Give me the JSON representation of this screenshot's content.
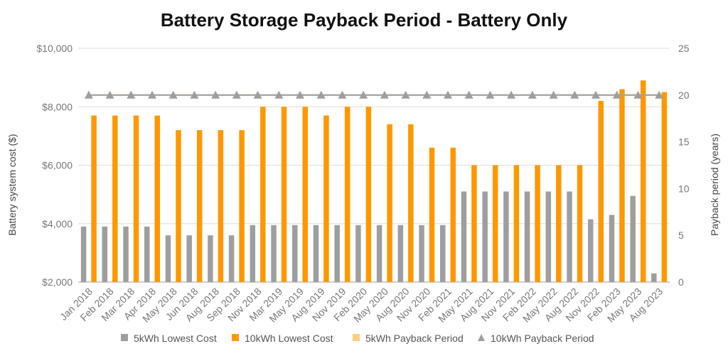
{
  "chart_data": {
    "type": "bar",
    "title": "Battery Storage Payback Period - Battery Only",
    "ylabel": "Battery system cost ($)",
    "y2label": "Payback period (years)",
    "ylim": [
      2000,
      10000
    ],
    "yticks": [
      "$2,000",
      "$4,000",
      "$6,000",
      "$8,000",
      "$10,000"
    ],
    "y2lim": [
      0,
      25
    ],
    "y2ticks": [
      "0",
      "5",
      "10",
      "15",
      "20",
      "25"
    ],
    "grid": true,
    "legend_position": "bottom",
    "categories": [
      "Jan 2018",
      "Feb 2018",
      "Mar 2018",
      "Apr 2018",
      "May 2018",
      "Jun 2018",
      "Aug 2018",
      "Sep 2018",
      "Nov 2018",
      "Mar 2019",
      "May 2019",
      "Aug 2019",
      "Nov 2019",
      "Feb 2020",
      "May 2020",
      "Aug 2020",
      "Nov 2020",
      "Feb 2021",
      "May 2021",
      "Aug 2021",
      "Nov 2021",
      "Feb 2022",
      "May 2022",
      "Aug 2022",
      "Nov 2022",
      "Feb 2023",
      "May 2023",
      "Aug 2023"
    ],
    "series": [
      {
        "name": "5kWh Lowest Cost",
        "kind": "bar",
        "axis": "left",
        "color": "#9e9e9e",
        "values": [
          3900,
          3900,
          3900,
          3900,
          3600,
          3600,
          3600,
          3600,
          3950,
          3950,
          3950,
          3950,
          3950,
          3950,
          3950,
          3950,
          3950,
          3950,
          5100,
          5100,
          5100,
          5100,
          5100,
          5100,
          4150,
          4300,
          4950,
          2300
        ]
      },
      {
        "name": "10kWh Lowest Cost",
        "kind": "bar",
        "axis": "left",
        "color": "#ff9800",
        "values": [
          7700,
          7700,
          7700,
          7700,
          7200,
          7200,
          7200,
          7200,
          8000,
          8000,
          8000,
          7700,
          8000,
          8000,
          7400,
          7400,
          6600,
          6600,
          6000,
          6000,
          6000,
          6000,
          6000,
          6000,
          8200,
          8600,
          8900,
          8500
        ]
      },
      {
        "name": "5kWh Payback Period",
        "kind": "line",
        "axis": "right",
        "color": "#ffcc80",
        "values": [
          20,
          20,
          20,
          20,
          20,
          20,
          20,
          20,
          20,
          20,
          20,
          20,
          20,
          20,
          20,
          20,
          20,
          20,
          20,
          20,
          20,
          20,
          20,
          20,
          20,
          20,
          20,
          20
        ]
      },
      {
        "name": "10kWh Payback Period",
        "kind": "line-marker",
        "axis": "right",
        "color": "#9e9e9e",
        "values": [
          20,
          20,
          20,
          20,
          20,
          20,
          20,
          20,
          20,
          20,
          20,
          20,
          20,
          20,
          20,
          20,
          20,
          20,
          20,
          20,
          20,
          20,
          20,
          20,
          20,
          20,
          20,
          20
        ]
      }
    ]
  }
}
